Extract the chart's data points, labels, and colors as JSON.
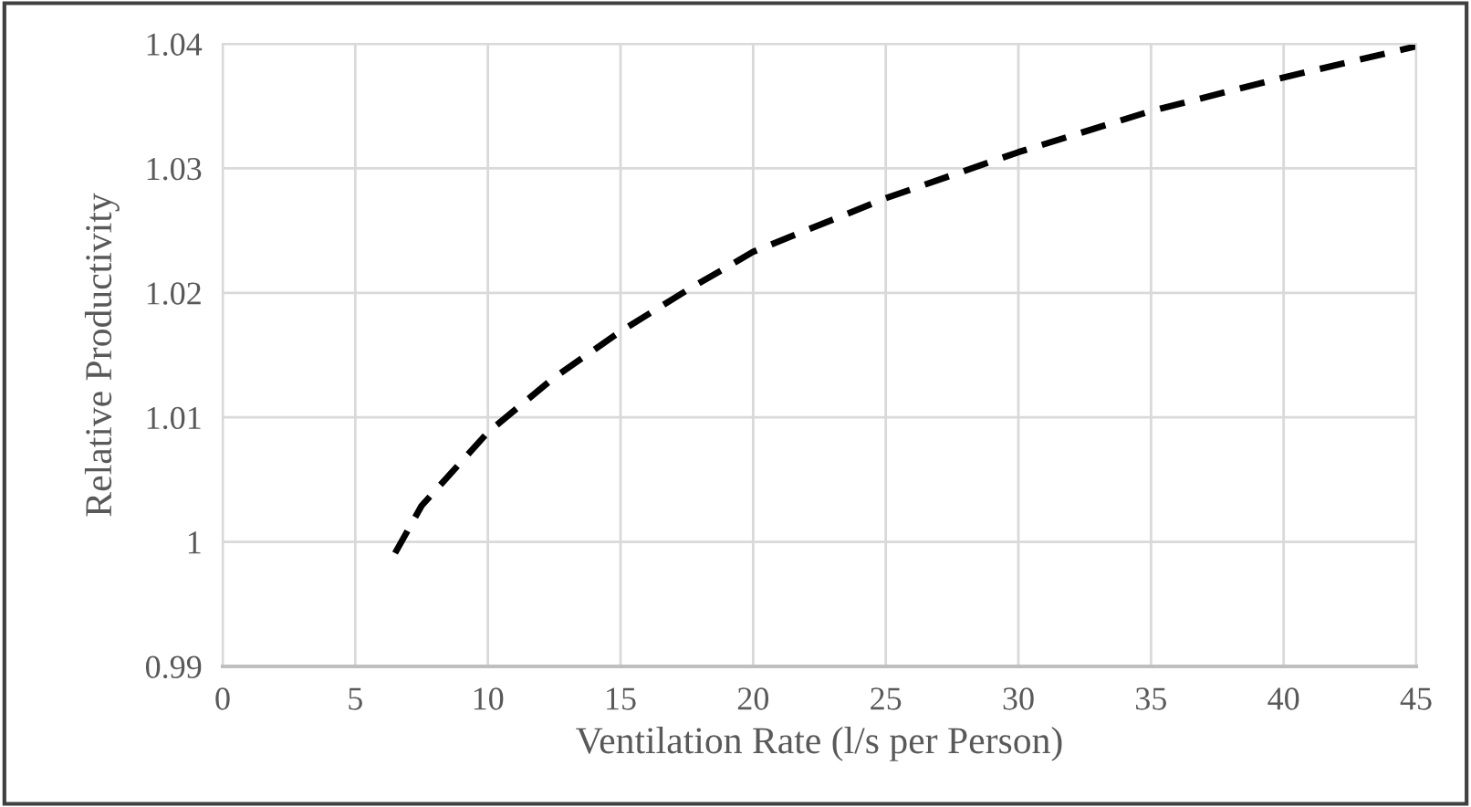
{
  "chart_data": {
    "type": "line",
    "xlabel": "Ventilation Rate (l/s per Person)",
    "ylabel": "Relative Productivity",
    "x": [
      6.5,
      7.5,
      10,
      12.5,
      15,
      17.5,
      20,
      25,
      30,
      35,
      40,
      45
    ],
    "series": [
      {
        "color": "#000000",
        "values": [
          0.9991,
          1.0029,
          1.0088,
          1.0132,
          1.0169,
          1.0202,
          1.0233,
          1.0276,
          1.0313,
          1.0346,
          1.0373,
          1.0398
        ]
      }
    ],
    "xlim": [
      0,
      45
    ],
    "xticks": [
      0,
      5,
      10,
      15,
      20,
      25,
      30,
      35,
      40,
      45
    ],
    "ylim": [
      0.99,
      1.04
    ],
    "yticks": [
      0.99,
      {
        "value": 1.0,
        "label": "1"
      },
      1.01,
      1.02,
      1.03,
      1.04
    ],
    "grid": true,
    "line_style": "dashed",
    "marker": "none"
  }
}
